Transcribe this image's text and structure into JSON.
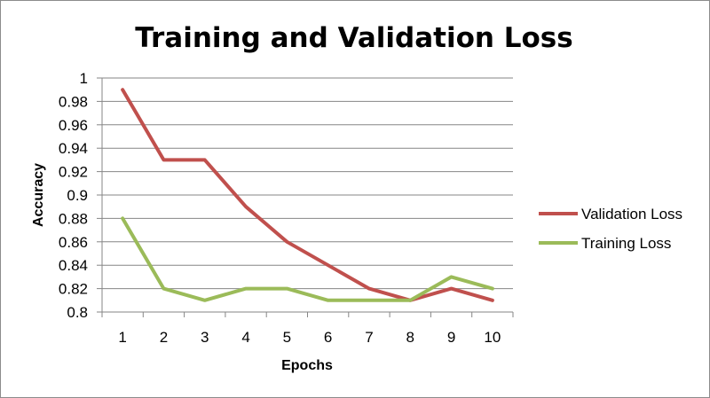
{
  "chart_data": {
    "type": "line",
    "title": "Training and Validation Loss",
    "xlabel": "Epochs",
    "ylabel": "Accuracy",
    "categories": [
      "1",
      "2",
      "3",
      "4",
      "5",
      "6",
      "7",
      "8",
      "9",
      "10"
    ],
    "ylim": [
      0.8,
      1.0
    ],
    "yticks": [
      "0.8",
      "0.82",
      "0.84",
      "0.86",
      "0.88",
      "0.9",
      "0.92",
      "0.94",
      "0.96",
      "0.98",
      "1"
    ],
    "grid": true,
    "legend_position": "right",
    "series": [
      {
        "name": "Validation Loss",
        "color": "#c0504d",
        "values": [
          0.99,
          0.93,
          0.93,
          0.89,
          0.86,
          0.84,
          0.82,
          0.81,
          0.82,
          0.81
        ]
      },
      {
        "name": "Training Loss",
        "color": "#9bbb59",
        "values": [
          0.88,
          0.82,
          0.81,
          0.82,
          0.82,
          0.81,
          0.81,
          0.81,
          0.83,
          0.82
        ]
      }
    ]
  }
}
